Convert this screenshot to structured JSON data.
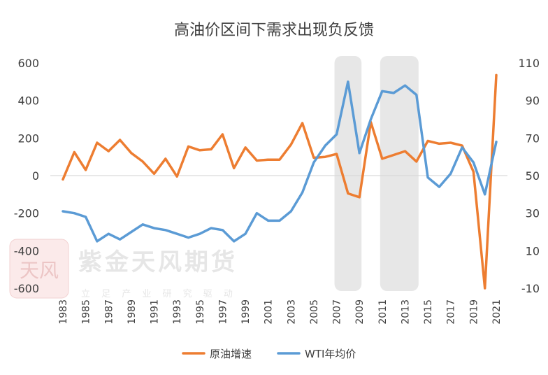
{
  "chart_data": {
    "type": "line",
    "title": "高油价区间下需求出现负反馈",
    "x": [
      "1983",
      "1984",
      "1985",
      "1986",
      "1987",
      "1988",
      "1989",
      "1990",
      "1991",
      "1992",
      "1993",
      "1994",
      "1995",
      "1996",
      "1997",
      "1998",
      "1999",
      "2000",
      "2001",
      "2002",
      "2003",
      "2004",
      "2005",
      "2006",
      "2007",
      "2008",
      "2009",
      "2010",
      "2011",
      "2012",
      "2013",
      "2014",
      "2015",
      "2016",
      "2017",
      "2018",
      "2019",
      "2020",
      "2021"
    ],
    "x_tick_labels": [
      "1983",
      "1985",
      "1987",
      "1989",
      "1991",
      "1993",
      "1995",
      "1997",
      "1999",
      "2001",
      "2003",
      "2005",
      "2007",
      "2009",
      "2011",
      "2013",
      "2015",
      "2017",
      "2019",
      "2021"
    ],
    "left_axis": {
      "range": [
        -600,
        600
      ],
      "ticks": [
        "600",
        "400",
        "200",
        "0",
        "-200",
        "-400",
        "-600"
      ]
    },
    "right_axis": {
      "range": [
        -10,
        110
      ],
      "ticks": [
        "110",
        "90",
        "70",
        "50",
        "30",
        "10",
        "-10"
      ]
    },
    "shaded_ranges": [
      [
        "2007",
        "2009"
      ],
      [
        "2011",
        "2014"
      ]
    ],
    "series": [
      {
        "name": "原油增速",
        "axis": "left",
        "color": "#ED7D31",
        "values": [
          -20,
          125,
          30,
          175,
          130,
          190,
          120,
          75,
          10,
          90,
          -5,
          155,
          135,
          140,
          220,
          40,
          150,
          80,
          85,
          85,
          165,
          280,
          95,
          100,
          115,
          -95,
          -115,
          285,
          90,
          110,
          130,
          75,
          185,
          170,
          175,
          160,
          20,
          -600,
          535
        ]
      },
      {
        "name": "WTI年均价",
        "axis": "right",
        "color": "#5B9BD5",
        "values": [
          31,
          30,
          28,
          15,
          19,
          16,
          20,
          24,
          22,
          21,
          19,
          17,
          19,
          22,
          21,
          15,
          19,
          30,
          26,
          26,
          31,
          41,
          57,
          66,
          72,
          100,
          62,
          80,
          95,
          94,
          98,
          93,
          49,
          44,
          51,
          65,
          57,
          40,
          68
        ]
      }
    ],
    "grid": false,
    "legend_position": "bottom"
  },
  "watermark": {
    "logo_text": "天风",
    "brand": "紫金天风期货",
    "slogan": "立 足 产 业 研 究 驱 动"
  }
}
